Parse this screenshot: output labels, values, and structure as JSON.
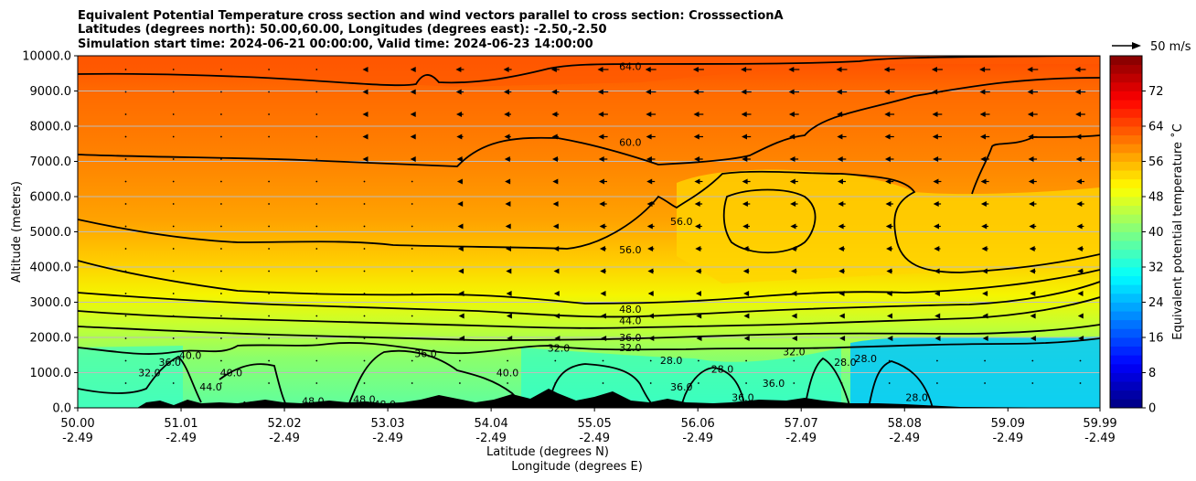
{
  "chart_data": {
    "type": "contour",
    "title_lines": [
      "Equivalent Potential Temperature cross section and wind vectors parallel to cross section: CrosssectionA",
      "Latitudes (degrees north): 50.00,60.00, Longitudes (degrees east): -2.50,-2.50",
      "Simulation start time: 2024-06-21 00:00:00, Valid time: 2024-06-23 14:00:00"
    ],
    "ylabel": "Altitude (meters)",
    "xlabel_lines": [
      "Latitude (degrees N)",
      "Longitude (degrees E)"
    ],
    "ylim": [
      0,
      10000
    ],
    "xlim": [
      50.0,
      59.99
    ],
    "y_ticks": [
      "0.0",
      "1000.0",
      "2000.0",
      "3000.0",
      "4000.0",
      "5000.0",
      "6000.0",
      "7000.0",
      "8000.0",
      "9000.0",
      "10000.0"
    ],
    "x_ticks": [
      {
        "lat": "50.00",
        "lon": "-2.49"
      },
      {
        "lat": "51.01",
        "lon": "-2.49"
      },
      {
        "lat": "52.02",
        "lon": "-2.49"
      },
      {
        "lat": "53.03",
        "lon": "-2.49"
      },
      {
        "lat": "54.04",
        "lon": "-2.49"
      },
      {
        "lat": "55.05",
        "lon": "-2.49"
      },
      {
        "lat": "56.06",
        "lon": "-2.49"
      },
      {
        "lat": "57.07",
        "lon": "-2.49"
      },
      {
        "lat": "58.08",
        "lon": "-2.49"
      },
      {
        "lat": "59.09",
        "lon": "-2.49"
      },
      {
        "lat": "59.99",
        "lon": "-2.49"
      }
    ],
    "grid": "horizontal",
    "colorbar": {
      "label": "Equivalent potential temperature $^\\circ$C",
      "label_display": "Equivalent potential temperature ˚C",
      "range": [
        0,
        80
      ],
      "ticks": [
        "0",
        "8",
        "16",
        "24",
        "32",
        "40",
        "48",
        "56",
        "64",
        "72"
      ],
      "colormap": "jet"
    },
    "quiver_key": "50 m/s",
    "contour_lines": [
      {
        "value": 64,
        "label": "64.0",
        "lat": 55.4,
        "alt": 9700
      },
      {
        "value": 60,
        "label": "60.0",
        "lat": 55.4,
        "alt": 7550
      },
      {
        "value": 56,
        "label": "56.0",
        "lat": 55.4,
        "alt": 4500
      },
      {
        "value": 56,
        "label": "56.0",
        "lat": 55.9,
        "alt": 5300
      },
      {
        "value": 48,
        "label": "48.0",
        "lat": 55.4,
        "alt": 2800
      },
      {
        "value": 44,
        "label": "44.0",
        "lat": 55.4,
        "alt": 2480
      },
      {
        "value": 36,
        "label": "36.0",
        "lat": 55.4,
        "alt": 2000
      },
      {
        "value": 32,
        "label": "32.0",
        "lat": 55.4,
        "alt": 1720
      },
      {
        "value": 32,
        "label": "32.0",
        "lat": 54.7,
        "alt": 1700
      },
      {
        "value": 36,
        "label": "36.0",
        "lat": 53.4,
        "alt": 1550
      },
      {
        "value": 40,
        "label": "40.0",
        "lat": 51.5,
        "alt": 1000
      },
      {
        "value": 40,
        "label": "40.0",
        "lat": 54.2,
        "alt": 1000
      },
      {
        "value": 40,
        "label": "40.0",
        "lat": 51.1,
        "alt": 1500
      },
      {
        "value": 36,
        "label": "36.0",
        "lat": 50.9,
        "alt": 1300
      },
      {
        "value": 32,
        "label": "32.0",
        "lat": 50.7,
        "alt": 1000
      },
      {
        "value": 44,
        "label": "44.0",
        "lat": 51.3,
        "alt": 600
      },
      {
        "value": 44,
        "label": "44.0",
        "lat": 51.7,
        "alt": 80
      },
      {
        "value": 48,
        "label": "48.0",
        "lat": 52.3,
        "alt": 200
      },
      {
        "value": 48,
        "label": "48.0",
        "lat": 52.8,
        "alt": 250
      },
      {
        "value": 48,
        "label": "48.0",
        "lat": 53.0,
        "alt": 100
      },
      {
        "value": 28,
        "label": "28.0",
        "lat": 55.8,
        "alt": 1350
      },
      {
        "value": 28,
        "label": "28.0",
        "lat": 56.3,
        "alt": 1100
      },
      {
        "value": 36,
        "label": "36.0",
        "lat": 55.9,
        "alt": 600
      },
      {
        "value": 36,
        "label": "36.0",
        "lat": 56.8,
        "alt": 700
      },
      {
        "value": 32,
        "label": "32.0",
        "lat": 57.0,
        "alt": 1600
      },
      {
        "value": 28,
        "label": "28.0",
        "lat": 57.5,
        "alt": 1300
      },
      {
        "value": 28,
        "label": "28.0",
        "lat": 57.7,
        "alt": 1400
      },
      {
        "value": 28,
        "label": "28.0",
        "lat": 58.2,
        "alt": 300
      },
      {
        "value": 36,
        "label": "36.0",
        "lat": 56.5,
        "alt": 300
      }
    ]
  }
}
